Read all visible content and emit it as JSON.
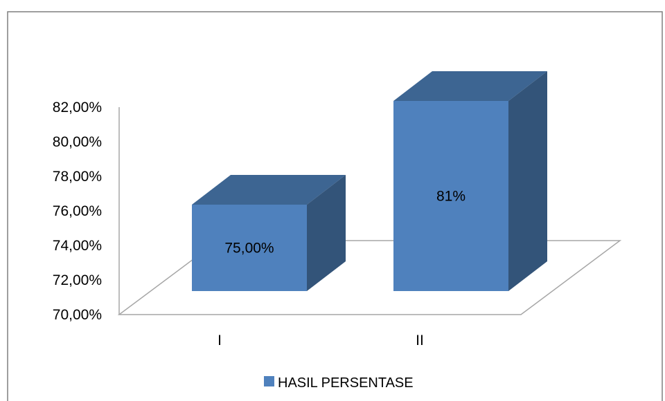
{
  "chart_data": {
    "type": "bar",
    "style": "3d-column",
    "categories": [
      "I",
      "II"
    ],
    "series": [
      {
        "name": "HASIL PERSENTASE",
        "values": [
          75,
          81
        ],
        "data_labels": [
          "75,00%",
          "81%"
        ]
      }
    ],
    "ylim": [
      70,
      82
    ],
    "y_ticks": [
      "70,00%",
      "72,00%",
      "74,00%",
      "76,00%",
      "78,00%",
      "80,00%",
      "82,00%"
    ],
    "title": "",
    "xlabel": "",
    "ylabel": "",
    "grid": false,
    "legend_position": "bottom"
  },
  "colors": {
    "bar_front": "#4F81BD",
    "bar_side": "#335479",
    "bar_top": "#3D6592",
    "floor_stroke": "#A6A6A6",
    "frame": "#7F7F7F"
  }
}
